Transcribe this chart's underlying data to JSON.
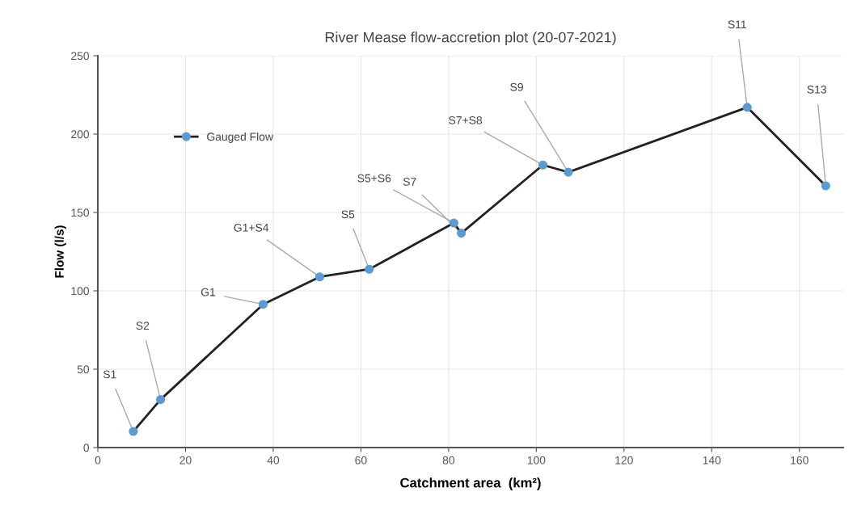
{
  "chart_data": {
    "type": "line",
    "title": "River Mease flow-accretion plot (20-07-2021)",
    "xlabel": "Catchment area  (km²)",
    "ylabel": "Flow (l/s)",
    "x": [
      8.1,
      14.3,
      37.7,
      50.6,
      61.9,
      81.2,
      82.9,
      101.5,
      107.3,
      148.1,
      166.0
    ],
    "series": [
      {
        "name": "Gauged Flow",
        "color": "#222222",
        "colors": [
          "#5b9bd5",
          "#5b9bd5",
          "#5b9bd5",
          "#5b9bd5",
          "#5b9bd5",
          "#5b9bd5",
          "#5b9bd5",
          "#5b9bd5",
          "#5b9bd5",
          "#5b9bd5",
          "#5b9bd5"
        ],
        "values": [
          10.3,
          30.6,
          91.4,
          108.9,
          113.8,
          143.3,
          136.8,
          180.3,
          175.7,
          217.1,
          167.0
        ]
      }
    ],
    "xlim": [
      0,
      170
    ],
    "xticks": [
      0,
      20,
      40,
      60,
      80,
      100,
      120,
      140,
      160
    ],
    "ylim": [
      0,
      250
    ],
    "yticks": [
      0,
      50,
      100,
      150,
      200,
      250
    ],
    "grid": true,
    "legend": "top left",
    "marker": "circle",
    "line_style": "solid",
    "annotations": [
      {
        "text": "S1",
        "x": 8.1,
        "y": 10.3
      },
      {
        "text": "S2",
        "x": 14.3,
        "y": 30.6
      },
      {
        "text": "G1",
        "x": 37.7,
        "y": 91.4
      },
      {
        "text": "G1+S4",
        "x": 50.6,
        "y": 108.9
      },
      {
        "text": "S5",
        "x": 61.9,
        "y": 113.8
      },
      {
        "text": "S5+S6",
        "x": 81.2,
        "y": 143.3
      },
      {
        "text": "S7",
        "x": 82.9,
        "y": 136.8
      },
      {
        "text": "S7+S8",
        "x": 101.5,
        "y": 180.3
      },
      {
        "text": "S9",
        "x": 107.3,
        "y": 175.7
      },
      {
        "text": "S11",
        "x": 148.1,
        "y": 217.1
      },
      {
        "text": "S13",
        "x": 166.0,
        "y": 167.0
      }
    ]
  }
}
